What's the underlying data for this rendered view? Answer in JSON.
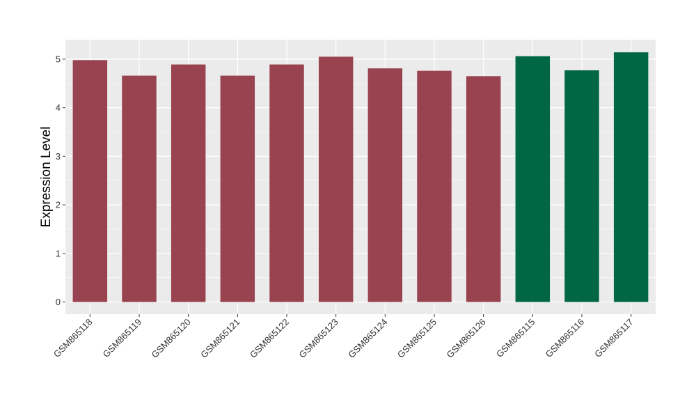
{
  "chart_data": {
    "type": "bar",
    "title": "",
    "xlabel": "",
    "ylabel": "Expression Level",
    "categories": [
      "GSM865118",
      "GSM865119",
      "GSM865120",
      "GSM865121",
      "GSM865122",
      "GSM865123",
      "GSM865124",
      "GSM865125",
      "GSM865126",
      "GSM865115",
      "GSM865116",
      "GSM865117"
    ],
    "values": [
      4.98,
      4.66,
      4.89,
      4.66,
      4.89,
      5.05,
      4.81,
      4.76,
      4.65,
      5.06,
      4.77,
      5.14
    ],
    "bar_colors": [
      "#9a4350",
      "#9a4350",
      "#9a4350",
      "#9a4350",
      "#9a4350",
      "#9a4350",
      "#9a4350",
      "#9a4350",
      "#9a4350",
      "#006644",
      "#006644",
      "#006644"
    ],
    "ylim": [
      -0.25,
      5.4
    ],
    "yticks": [
      0,
      1,
      2,
      3,
      4,
      5
    ],
    "grid": true,
    "panel_background": "#ebebeb",
    "grid_color": "#ffffff"
  }
}
